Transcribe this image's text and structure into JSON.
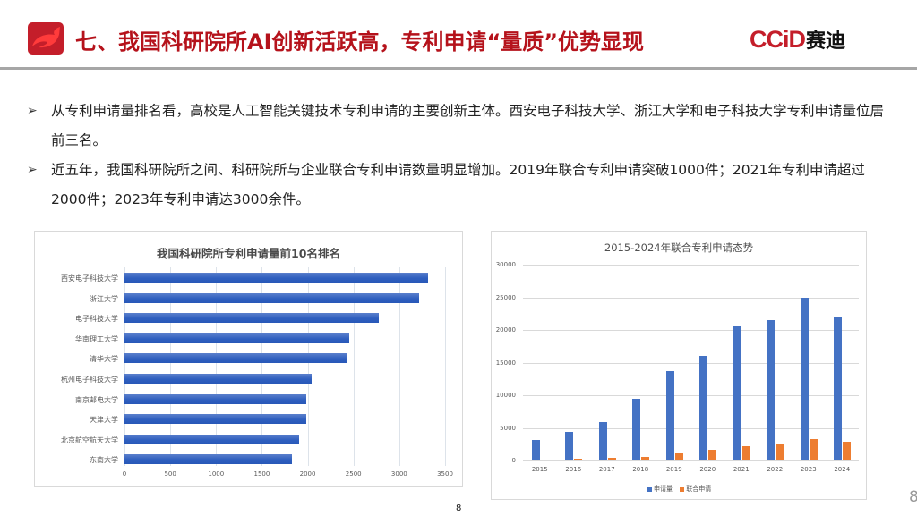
{
  "header": {
    "title": "七、我国科研院所AI创新活跃高，专利申请“量质”优势显现",
    "brand_latin": "CCiD",
    "brand_cn": "赛迪"
  },
  "bullets": [
    {
      "icon": "arrow-bullet-icon",
      "text": "从专利申请量排名看，高校是人工智能关键技术专利申请的主要创新主体。西安电子科技大学、浙江大学和电子科技大学专利申请量位居前三名。"
    },
    {
      "icon": "arrow-bullet-icon",
      "text": "近五年，我国科研院所之间、科研院所与企业联合专利申请数量明显增加。2019年联合专利申请突破1000件；2021年专利申请超过2000件；2023年专利申请达3000余件。"
    }
  ],
  "page_number": "8",
  "page_number_right": "8",
  "chart_data": [
    {
      "type": "bar",
      "orientation": "horizontal",
      "title": "我国科研院所专利申请量前10名排名",
      "categories": [
        "西安电子科技大学",
        "浙江大学",
        "电子科技大学",
        "华南理工大学",
        "清华大学",
        "杭州电子科技大学",
        "南京邮电大学",
        "天津大学",
        "北京航空航天大学",
        "东南大学"
      ],
      "values": [
        3310,
        3220,
        2780,
        2450,
        2430,
        2040,
        1980,
        1980,
        1910,
        1830
      ],
      "xlabel": "",
      "ylabel": "",
      "xlim": [
        0,
        3500
      ],
      "xticks": [
        "0",
        "500",
        "1000",
        "1500",
        "2000",
        "2500",
        "3000",
        "3500"
      ],
      "grid": true,
      "colors": {
        "bar": "#2f5fbf"
      }
    },
    {
      "type": "bar",
      "orientation": "vertical",
      "title": "2015-2024年联合专利申请态势",
      "categories": [
        "2015",
        "2016",
        "2017",
        "2018",
        "2019",
        "2020",
        "2021",
        "2022",
        "2023",
        "2024"
      ],
      "series": [
        {
          "name": "申请量",
          "color": "#4472c4",
          "values": [
            3100,
            4400,
            5900,
            9500,
            13700,
            16000,
            20500,
            21500,
            25000,
            22000
          ]
        },
        {
          "name": "联合申请",
          "color": "#ed7d31",
          "values": [
            150,
            250,
            350,
            600,
            1100,
            1650,
            2200,
            2450,
            3300,
            2900
          ]
        }
      ],
      "ylim": [
        0,
        30000
      ],
      "yticks": [
        "0",
        "5000",
        "10000",
        "15000",
        "20000",
        "25000",
        "30000"
      ],
      "grid": true,
      "legend_position": "bottom"
    }
  ]
}
